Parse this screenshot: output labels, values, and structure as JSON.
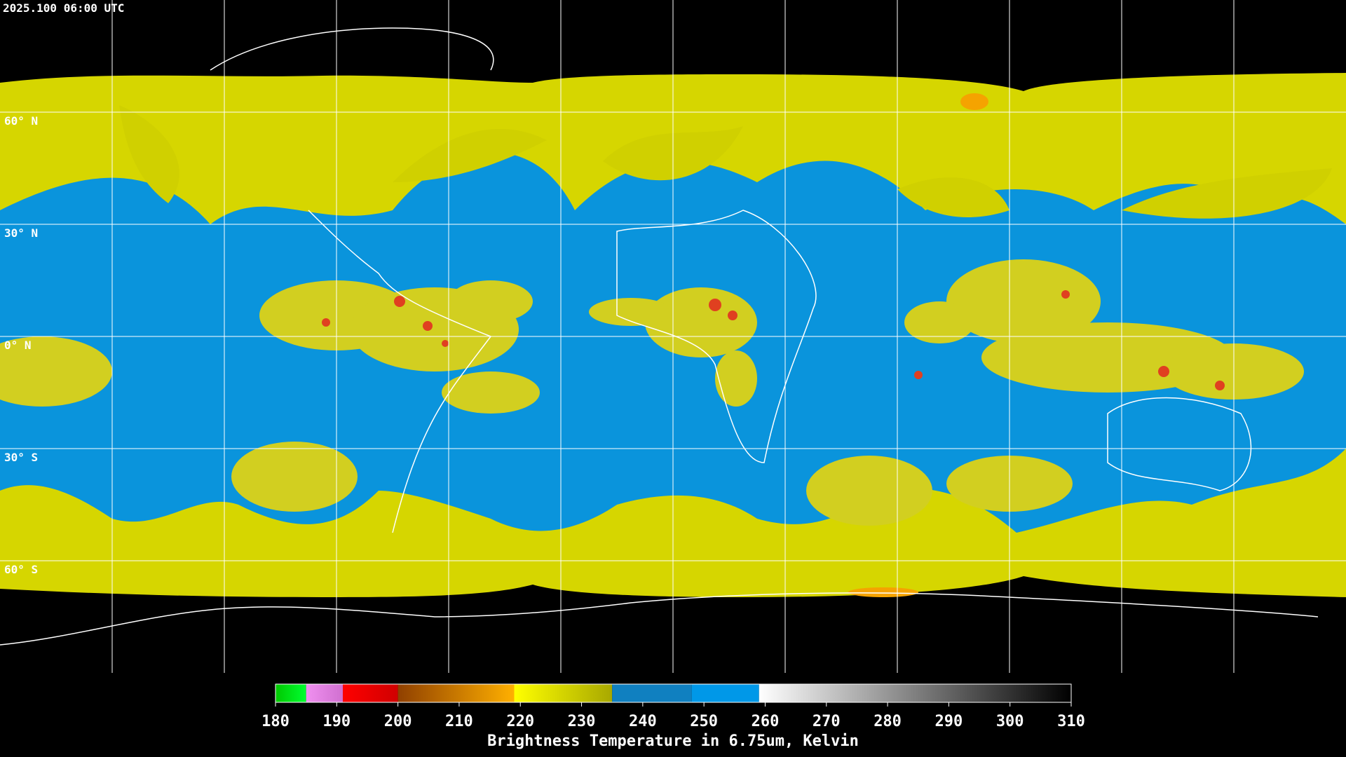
{
  "timestamp": "2025.100 06:00 UTC",
  "latitude_labels": [
    "60° N",
    "30° N",
    "0° N",
    "30° S",
    "60° S"
  ],
  "colorbar": {
    "title": "Brightness Temperature in 6.75um, Kelvin",
    "min": 180,
    "max": 310,
    "ticks": [
      180,
      190,
      200,
      210,
      220,
      230,
      240,
      250,
      260,
      270,
      280,
      290,
      300,
      310
    ],
    "stops": [
      {
        "from": 180,
        "to": 185,
        "color_start": "#00c800",
        "color_end": "#00ff30"
      },
      {
        "from": 185,
        "to": 191,
        "color_start": "#f090f0",
        "color_end": "#d070d0"
      },
      {
        "from": 191,
        "to": 200,
        "color_start": "#ff0000",
        "color_end": "#d00000"
      },
      {
        "from": 200,
        "to": 219,
        "color_start": "#904000",
        "color_end": "#ffb000"
      },
      {
        "from": 219,
        "to": 235,
        "color_start": "#ffff00",
        "color_end": "#a8a800"
      },
      {
        "from": 235,
        "to": 248,
        "color_start": "#1080c0",
        "color_end": "#1080c0"
      },
      {
        "from": 248,
        "to": 259,
        "color_start": "#0098e8",
        "color_end": "#0098e8"
      },
      {
        "from": 259,
        "to": 310,
        "color_start": "#ffffff",
        "color_end": "#000000"
      }
    ]
  }
}
